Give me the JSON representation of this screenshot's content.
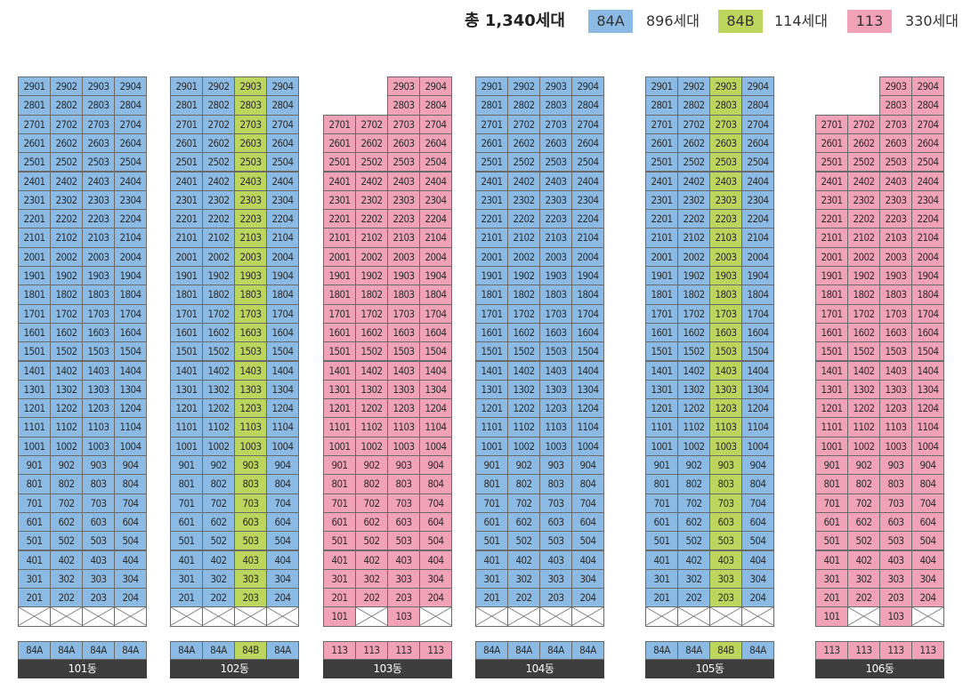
{
  "legend": {
    "total": "총 1,340세대",
    "items": [
      {
        "type": "84A",
        "count": "896세대",
        "color": "#8bbbe5"
      },
      {
        "type": "84B",
        "count": "114세대",
        "color": "#bcd55c"
      },
      {
        "type": "113",
        "count": "330세대",
        "color": "#f1a2b6"
      }
    ]
  },
  "colors": {
    "84A": "#8bbbe5",
    "84B": "#bcd55c",
    "113": "#f1a2b6",
    "label_bg": "#3d3d3d"
  },
  "buildings": [
    {
      "name": "101동",
      "lines": [
        "84A",
        "84A",
        "84A",
        "84A"
      ],
      "top_floors": [
        29,
        29,
        29,
        29
      ],
      "ground": [
        "",
        "",
        "",
        ""
      ]
    },
    {
      "name": "102동",
      "lines": [
        "84A",
        "84A",
        "84B",
        "84A"
      ],
      "top_floors": [
        29,
        29,
        29,
        29
      ],
      "ground": [
        "",
        "",
        "",
        ""
      ]
    },
    {
      "name": "103동",
      "lines": [
        "113",
        "113",
        "113",
        "113"
      ],
      "top_floors": [
        27,
        27,
        29,
        29
      ],
      "ground": [
        "101",
        "",
        "103",
        ""
      ]
    },
    {
      "name": "104동",
      "lines": [
        "84A",
        "84A",
        "84A",
        "84A"
      ],
      "top_floors": [
        29,
        29,
        29,
        29
      ],
      "ground": [
        "",
        "",
        "",
        ""
      ]
    },
    {
      "name": "105동",
      "lines": [
        "84A",
        "84A",
        "84B",
        "84A"
      ],
      "top_floors": [
        29,
        29,
        29,
        29
      ],
      "ground": [
        "",
        "",
        "",
        ""
      ]
    },
    {
      "name": "106동",
      "lines": [
        "113",
        "113",
        "113",
        "113"
      ],
      "top_floors": [
        27,
        27,
        29,
        29
      ],
      "ground": [
        "101",
        "",
        "103",
        ""
      ]
    }
  ]
}
